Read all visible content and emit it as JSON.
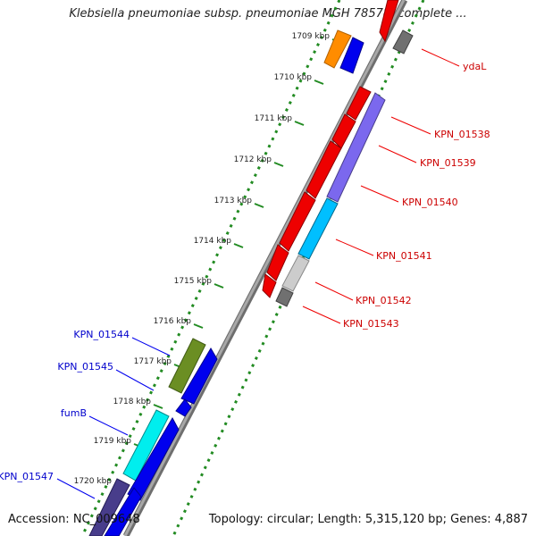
{
  "title": "Klebsiella pneumoniae subsp. pneumoniae MGH 78578, complete ...",
  "accession": "Accession: NC_009648",
  "topology": "Topology: circular; Length: 5,315,120 bp; Genes: 4,887",
  "ticks": [
    "1709 kbp",
    "1710 kbp",
    "1711 kbp",
    "1712 kbp",
    "1713 kbp",
    "1714 kbp",
    "1715 kbp",
    "1716 kbp",
    "1717 kbp",
    "1718 kbp",
    "1719 kbp",
    "1720 kbp"
  ],
  "genes_right": [
    {
      "label": "ydaL",
      "color": "#cc0000"
    },
    {
      "label": "KPN_01538",
      "color": "#cc0000"
    },
    {
      "label": "KPN_01539",
      "color": "#cc0000"
    },
    {
      "label": "KPN_01540",
      "color": "#cc0000"
    },
    {
      "label": "KPN_01541",
      "color": "#cc0000"
    },
    {
      "label": "KPN_01542",
      "color": "#cc0000"
    },
    {
      "label": "KPN_01543",
      "color": "#cc0000"
    }
  ],
  "genes_left": [
    {
      "label": "KPN_01544",
      "color": "#0000cc"
    },
    {
      "label": "KPN_01545",
      "color": "#0000cc"
    },
    {
      "label": "fumB",
      "color": "#0000cc"
    },
    {
      "label": "KPN_01547",
      "color": "#0000cc"
    }
  ],
  "colors": {
    "forward": "#0000ee",
    "reverse": "#ee0000",
    "orange": "#ff8800",
    "olive": "#6b8e23",
    "cyan": "#00e5ee",
    "slate": "#7b68ee",
    "skyblue": "#00bfff",
    "gray": "#888888",
    "lightgray": "#cccccc",
    "darkslate": "#483d8b",
    "backbone": "#8c8c8c",
    "dots": "#228b22"
  }
}
